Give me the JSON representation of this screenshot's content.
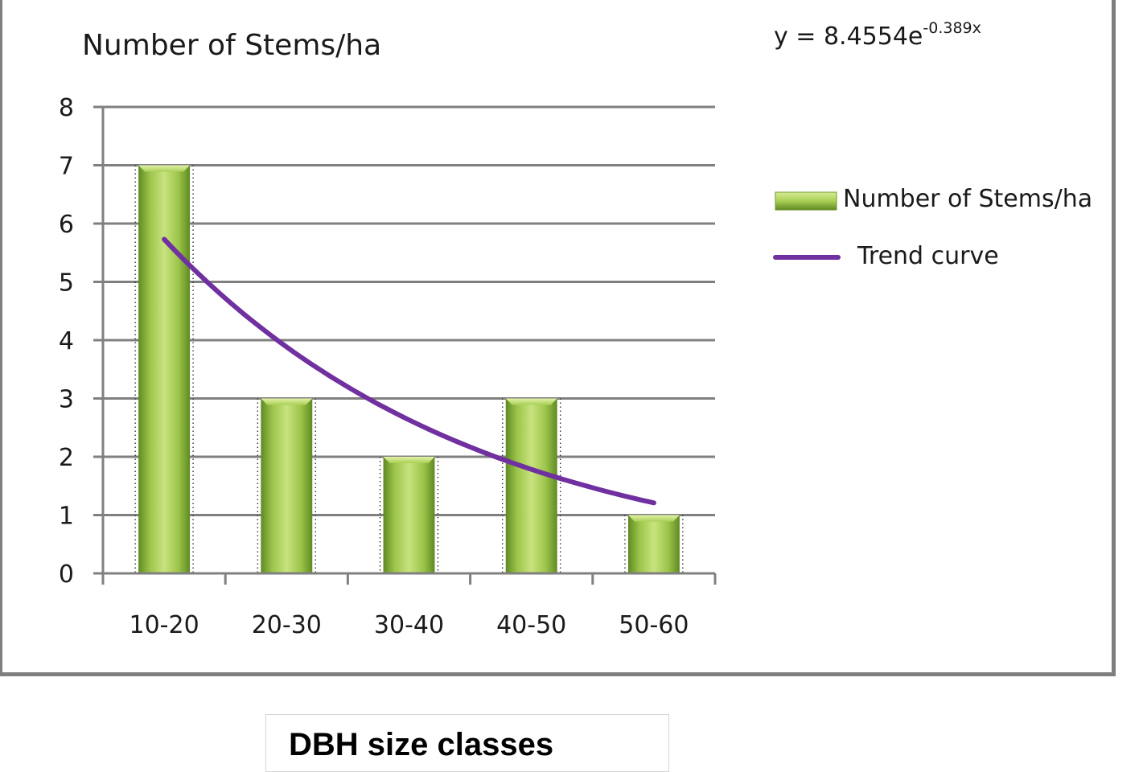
{
  "chart_data": {
    "type": "bar",
    "title": "Number of Stems/ha",
    "categories": [
      "10-20",
      "20-30",
      "30-40",
      "40-50",
      "50-60"
    ],
    "series": [
      {
        "name": "Number of Stems/ha",
        "type": "bar",
        "values": [
          7,
          3,
          2,
          3,
          1
        ]
      },
      {
        "name": "Trend curve",
        "type": "line",
        "equation": {
          "a": 8.4554,
          "b": -0.389
        },
        "values": [
          5.72,
          3.87,
          2.62,
          1.78,
          1.2
        ]
      }
    ],
    "equation_text": {
      "base": "y = 8.4554e",
      "exponent": "-0.389x"
    },
    "yticks": [
      "0",
      "1",
      "2",
      "3",
      "4",
      "5",
      "6",
      "7",
      "8"
    ],
    "ylim": [
      0,
      8
    ],
    "xlabel": "DBH size classes",
    "ylabel": "",
    "grid": true,
    "legend_position": "right",
    "colors": {
      "bar_light": "#c4e07a",
      "bar_mid": "#9cc44a",
      "bar_dark": "#5f8a23",
      "trend": "#7030a0",
      "grid": "#808080"
    }
  }
}
